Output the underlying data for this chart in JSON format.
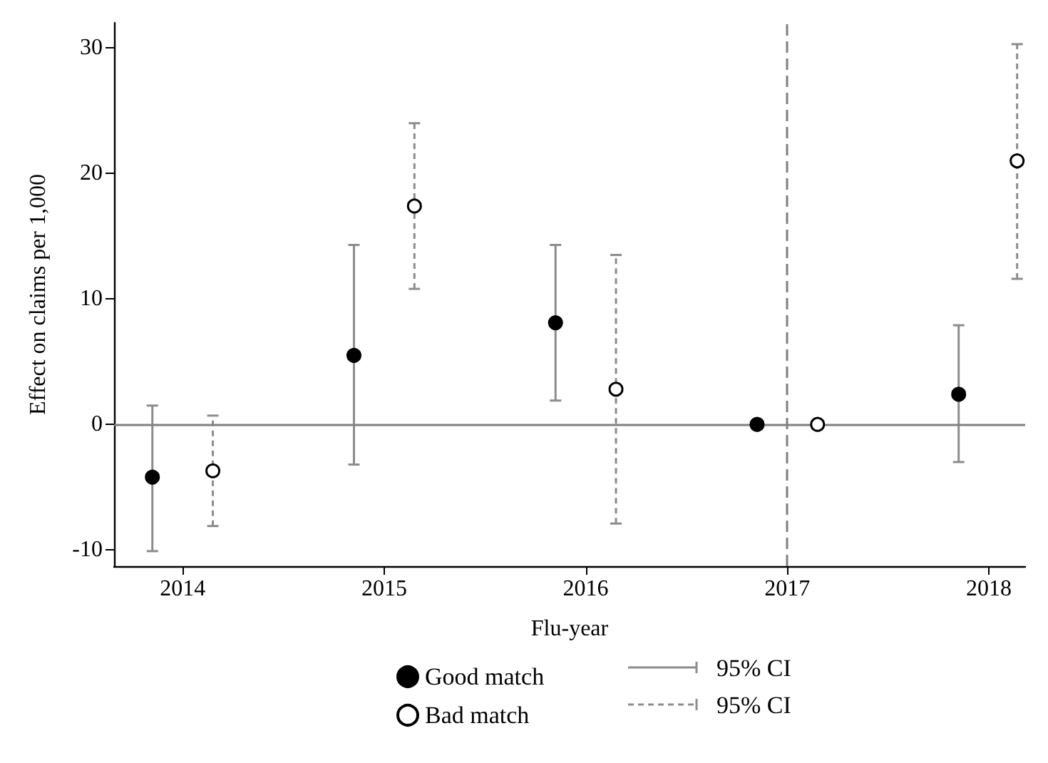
{
  "chart_data": {
    "type": "scatter",
    "xlabel": "Flu-year",
    "ylabel": "Effect on claims per 1,000",
    "xlim": [
      2013.66,
      2018.18
    ],
    "xticks": [
      2014,
      2015,
      2016,
      2017,
      2018
    ],
    "ylim": [
      -11.3,
      32
    ],
    "yticks": [
      -10,
      0,
      10,
      20,
      30
    ],
    "grid": false,
    "legend": "bottom",
    "marker": "circle",
    "series": [
      {
        "name": "Good match",
        "color": "#000000",
        "line_style": "solid",
        "x": [
          2013.85,
          2014.85,
          2015.85,
          2016.85,
          2017.85
        ],
        "values": [
          -4.2,
          5.5,
          8.1,
          0,
          2.4
        ],
        "errors": [
          [
            -10.1,
            1.5
          ],
          [
            -3.2,
            14.3
          ],
          [
            1.9,
            14.3
          ],
          null,
          [
            -3.0,
            7.9
          ]
        ]
      },
      {
        "name": "Bad match",
        "color": "#ffffff",
        "line_style": "dashed",
        "x": [
          2014.15,
          2015.15,
          2016.15,
          2017.15,
          2018.14
        ],
        "values": [
          -3.7,
          17.4,
          2.8,
          0,
          21.0
        ],
        "errors": [
          [
            -8.1,
            0.7
          ],
          [
            10.8,
            24.0
          ],
          [
            -7.9,
            13.5
          ],
          null,
          [
            11.6,
            30.3
          ]
        ]
      }
    ],
    "ref_lines": [
      {
        "axis": "y",
        "value": 0,
        "color": "#808080",
        "line_style": "solid"
      },
      {
        "axis": "x",
        "value": 2017,
        "color": "#808080",
        "line_style": "dashed"
      }
    ],
    "annotations": [
      "95% CI",
      "95% CI"
    ]
  }
}
